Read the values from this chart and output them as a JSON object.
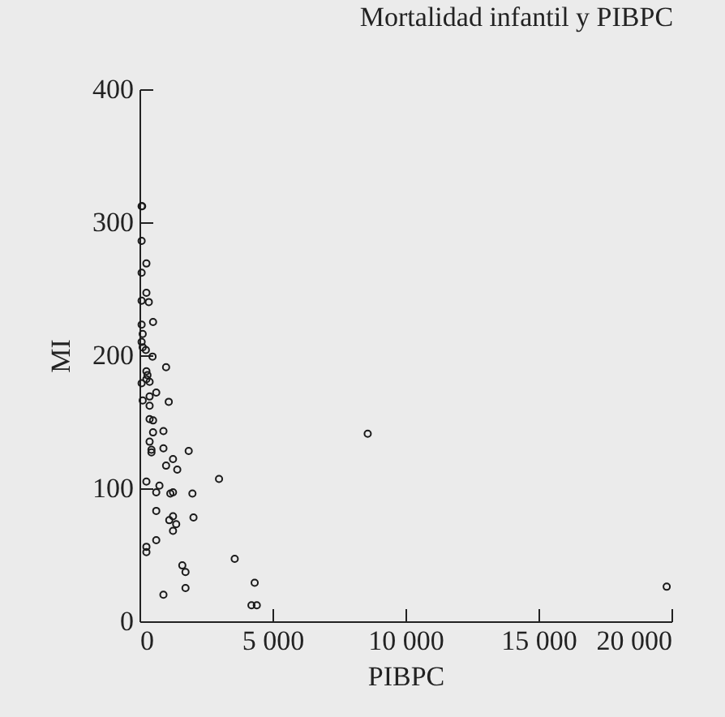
{
  "chart_data": {
    "type": "scatter",
    "title": "Mortalidad infantil y PIBPC",
    "xlabel": "PIBPC",
    "ylabel": "MI",
    "x": [
      80,
      100,
      80,
      260,
      80,
      260,
      80,
      350,
      510,
      80,
      120,
      80,
      120,
      240,
      490,
      1000,
      260,
      300,
      260,
      80,
      380,
      630,
      120,
      380,
      1100,
      380,
      380,
      510,
      510,
      900,
      380,
      450,
      900,
      450,
      1850,
      1260,
      1000,
      1420,
      2990,
      260,
      750,
      630,
      1160,
      1260,
      1990,
      630,
      2030,
      1260,
      1120,
      1380,
      1260,
      630,
      260,
      260,
      3580,
      1610,
      1730,
      4330,
      1730,
      900,
      4210,
      4410,
      8580,
      19820
    ],
    "values": [
      312,
      312,
      286,
      269,
      262,
      247,
      241,
      240,
      225,
      223,
      216,
      210,
      206,
      204,
      199,
      191,
      188,
      185,
      182,
      179,
      180,
      172,
      166,
      169,
      165,
      162,
      152,
      151,
      142,
      143,
      135,
      129,
      130,
      127,
      128,
      122,
      117,
      114,
      107,
      105,
      102,
      97,
      96,
      97,
      96,
      83,
      78,
      79,
      76,
      73,
      68,
      61,
      56,
      52,
      47,
      42,
      37,
      29,
      25,
      20,
      12,
      12,
      141,
      26
    ],
    "color": "#1a1a1a",
    "marker": "circle",
    "grid": false,
    "xlim": [
      0,
      20000
    ],
    "xticks": [
      0,
      {
        "value": 5000,
        "label": "5 000"
      },
      {
        "value": 10000,
        "label": "10 000"
      },
      {
        "value": 15000,
        "label": "15 000"
      },
      {
        "value": 20000,
        "label": "20 000"
      }
    ],
    "ylim": [
      0,
      400
    ],
    "yticks": [
      0,
      100,
      200,
      300,
      400
    ]
  }
}
